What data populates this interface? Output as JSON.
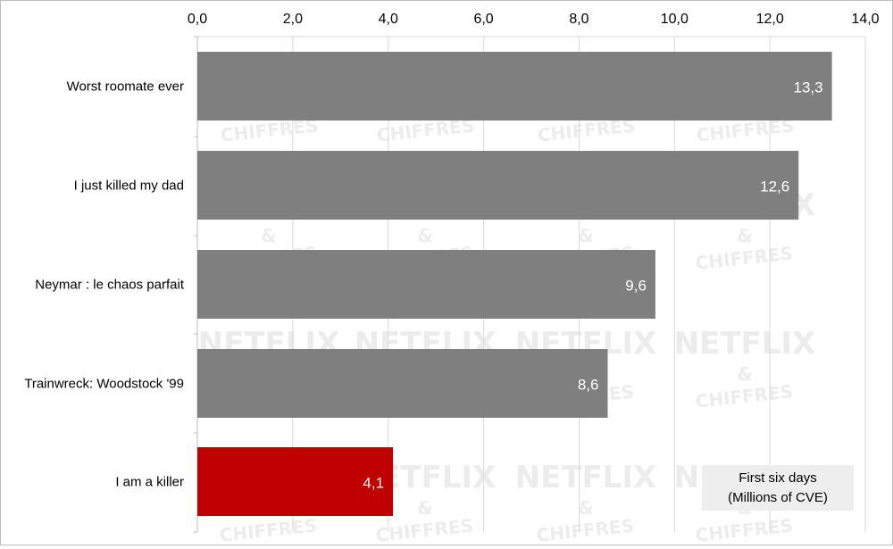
{
  "chart_data": {
    "type": "bar",
    "orientation": "horizontal",
    "categories": [
      "Worst roomate ever",
      "I just killed my dad",
      "Neymar : le chaos parfait",
      "Trainwreck: Woodstock '99",
      "I am a killer"
    ],
    "values": [
      13.3,
      12.6,
      9.6,
      8.6,
      4.1
    ],
    "value_labels": [
      "13,3",
      "12,6",
      "9,6",
      "8,6",
      "4,1"
    ],
    "x_ticks": [
      "0,0",
      "2,0",
      "4,0",
      "6,0",
      "8,0",
      "10,0",
      "12,0",
      "14,0"
    ],
    "xlim": [
      0,
      14
    ],
    "x_axis_position": "top",
    "grid": true,
    "title": "",
    "xlabel": "",
    "ylabel": "",
    "annotation": {
      "line1": "First six days",
      "line2": "(Millions of CVE)"
    },
    "watermark": {
      "line1": "NETFLIX",
      "line2": "&",
      "line3": "CHIFFRES"
    },
    "colors": {
      "bar_default": "#7f7f7f",
      "bar_highlight": "#c00000",
      "grid": "#d9d9d9",
      "annotation_bg": "#eeeeee",
      "watermark": "#ececec"
    },
    "highlight_index": 4
  }
}
